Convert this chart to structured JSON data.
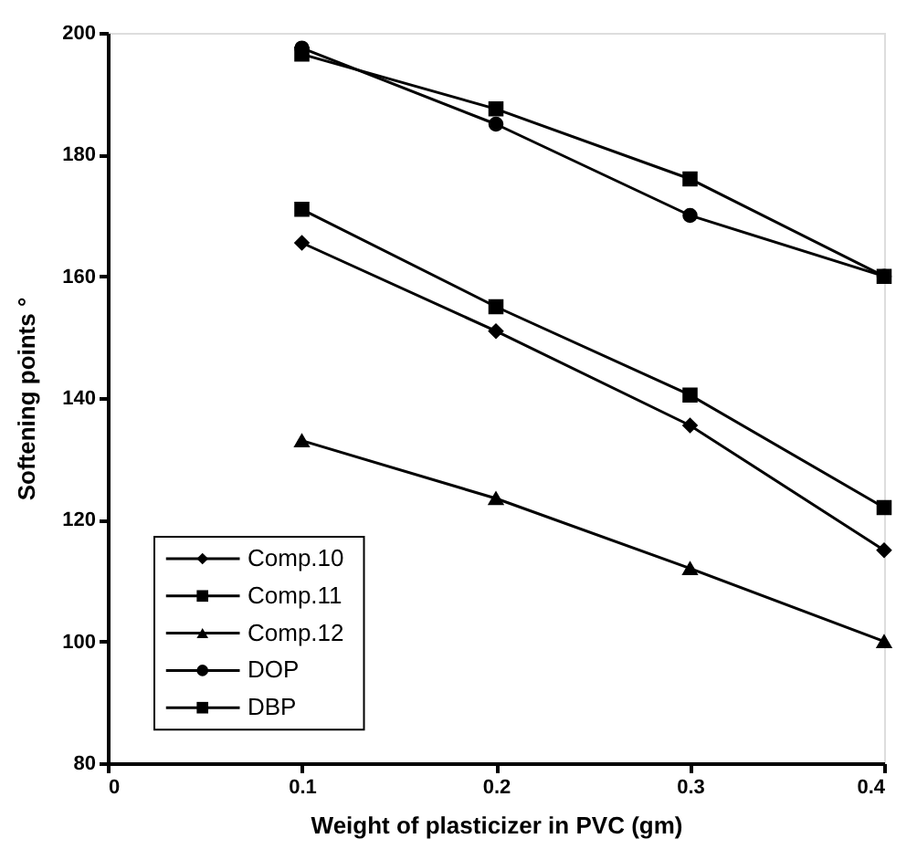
{
  "chart_data": {
    "type": "line",
    "xlabel": "Weight of plasticizer in PVC (gm)",
    "ylabel": "Softening points °",
    "x": [
      0.1,
      0.2,
      0.3,
      0.4
    ],
    "series": [
      {
        "name": "Comp.10",
        "color": "#000000",
        "marker": "diamond",
        "values": [
          165.5,
          151,
          135.5,
          115
        ]
      },
      {
        "name": "Comp.11",
        "color": "#000000",
        "marker": "square",
        "values": [
          171,
          155,
          140.5,
          122
        ]
      },
      {
        "name": "Comp.12",
        "color": "#000000",
        "marker": "triangle",
        "values": [
          133,
          123.5,
          112,
          100
        ]
      },
      {
        "name": "DOP",
        "color": "#000000",
        "marker": "circle",
        "values": [
          197.5,
          185,
          170,
          160
        ]
      },
      {
        "name": "DBP",
        "color": "#000000",
        "marker": "square",
        "values": [
          196.5,
          187.5,
          176,
          160
        ]
      }
    ],
    "xlim": [
      0,
      0.4
    ],
    "xticks": [
      0,
      0.1,
      0.2,
      0.3,
      0.4
    ],
    "ylim": [
      80,
      200
    ],
    "yticks": [
      80,
      100,
      120,
      140,
      160,
      180,
      200
    ],
    "grid": false,
    "legend": "bottom left",
    "line_style": "solid"
  }
}
